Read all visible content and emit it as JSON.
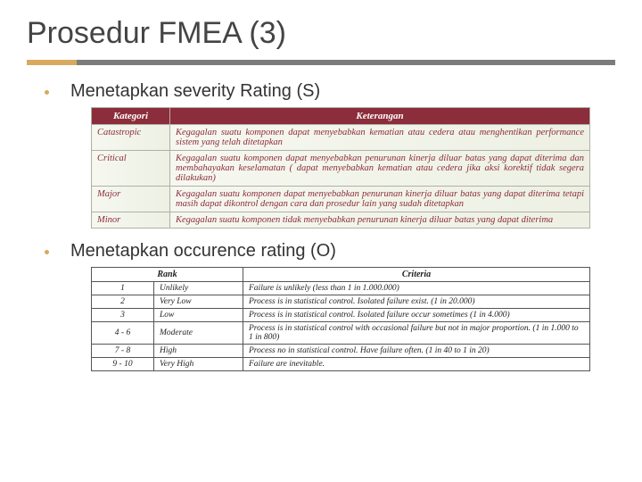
{
  "title": "Prosedur FMEA (3)",
  "colors": {
    "accent": "#d9a960",
    "line": "#7c7c7c",
    "sev_header_bg": "#8b2d3a",
    "sev_text": "#8b2d3a",
    "sev_row_bg_from": "#f6f8f0",
    "sev_row_bg_to": "#edf0e3",
    "border": "#b0b0a8"
  },
  "bullets": {
    "severity": "Menetapkan severity Rating (S)",
    "occurrence": "Menetapkan occurence rating (O)"
  },
  "severity_table": {
    "headers": [
      "Kategori",
      "Keterangan"
    ],
    "rows": [
      {
        "kategori": "Catastropic",
        "keterangan": "Kegagalan suatu komponen dapat menyebabkan kematian atau cedera atau menghentikan performance sistem yang telah ditetapkan"
      },
      {
        "kategori": "Critical",
        "keterangan": "Kegagalan suatu komponen dapat menyebabkan penurunan kinerja diluar batas yang dapat diterima dan membahayakan keselamatan ( dapat menyebabkan kematian atau cedera jika aksi korektif tidak segera dilakukan)"
      },
      {
        "kategori": "Major",
        "keterangan": "Kegagalan suatu komponen dapat menyebabkan penurunan kinerja diluar batas yang dapat diterima tetapi masih dapat dikontrol dengan cara dan prosedur lain yang sudah ditetapkan"
      },
      {
        "kategori": "Minor",
        "keterangan": "Kegagalan suatu komponen tidak menyebabkan penurunan kinerja diluar batas yang dapat diterima"
      }
    ]
  },
  "occurrence_table": {
    "headers": [
      "Rank",
      "",
      "Criteria"
    ],
    "rows": [
      {
        "rank": "1",
        "cat": "Unlikely",
        "crit": "Failure is unlikely (less than 1 in 1.000.000)"
      },
      {
        "rank": "2",
        "cat": "Very Low",
        "crit": "Process is in statistical control. Isolated failure exist. (1 in 20.000)"
      },
      {
        "rank": "3",
        "cat": "Low",
        "crit": "Process is in statistical control. Isolated failure occur sometimes (1 in 4.000)"
      },
      {
        "rank": "4 - 6",
        "cat": "Moderate",
        "crit": "Process is in statistical control with occasional failure but not in major proportion. (1 in 1.000 to 1 in 800)"
      },
      {
        "rank": "7 - 8",
        "cat": "High",
        "crit": "Process no in statistical control. Have failure often. (1 in 40 to 1 in 20)"
      },
      {
        "rank": "9 - 10",
        "cat": "Very High",
        "crit": "Failure are inevitable."
      }
    ]
  }
}
